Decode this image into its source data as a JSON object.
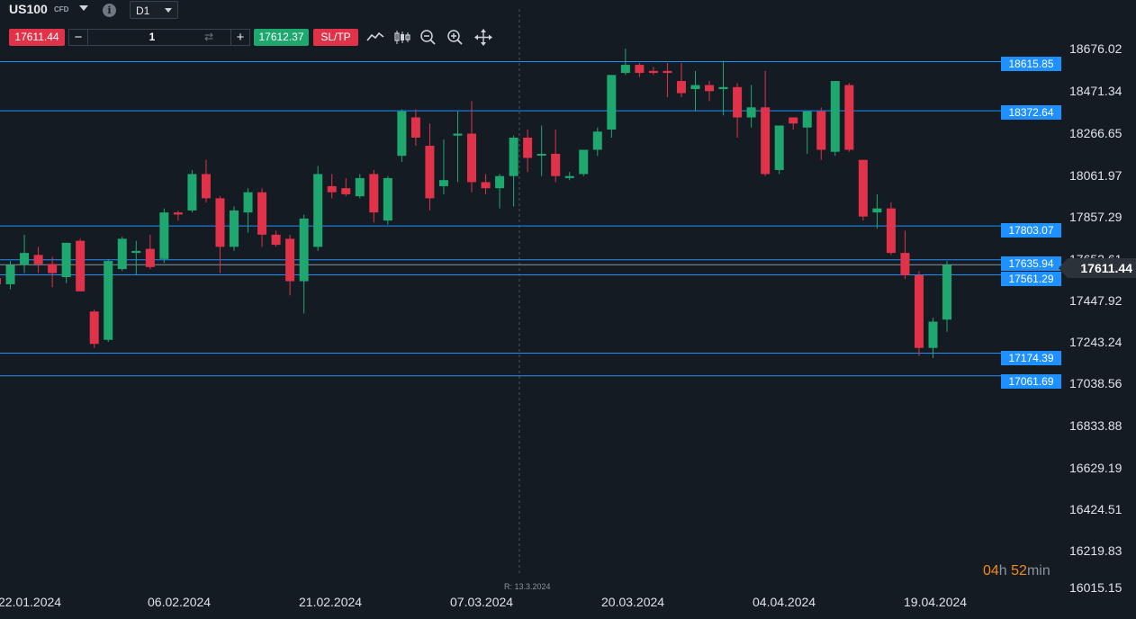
{
  "header": {
    "symbol": "US100",
    "symbol_type": "CFD",
    "info_icon": "info-icon",
    "timeframe": "D1"
  },
  "trade_bar": {
    "sell_price": "17611.44",
    "quantity": "1",
    "buy_price": "17612.37",
    "sltp_label": "SL/TP",
    "tools": [
      "line-chart-icon",
      "candlestick-icon",
      "zoom-out-icon",
      "zoom-in-icon",
      "move-icon"
    ]
  },
  "price_axis": [
    "18676.02",
    "18471.34",
    "18266.65",
    "18061.97",
    "17857.29",
    "17652.61",
    "17447.92",
    "17243.24",
    "17038.56",
    "16833.88",
    "16629.19",
    "16424.51",
    "16219.83",
    "16015.15"
  ],
  "date_axis": [
    "22.01.2024",
    "06.02.2024",
    "21.02.2024",
    "07.03.2024",
    "20.03.2024",
    "04.04.2024",
    "19.04.2024"
  ],
  "levels": [
    "18615.85",
    "18372.64",
    "17803.07",
    "17635.94",
    "17561.29",
    "17174.39",
    "17061.69"
  ],
  "current_price": "17611.44",
  "marker_label": "R: 13.3.2024",
  "countdown": {
    "hours": "04",
    "h": "h",
    "minutes": "52",
    "min": "min"
  },
  "colors": {
    "up": "#1ea870",
    "down": "#e0334a",
    "level": "#1e90ff",
    "background": "#151b22"
  },
  "chart_data": {
    "type": "candlestick",
    "series": [
      {
        "name": "US100",
        "ohlc": [
          [
            17545,
            17565,
            17480,
            17515
          ],
          [
            17515,
            17630,
            17490,
            17610
          ],
          [
            17610,
            17760,
            17570,
            17670
          ],
          [
            17660,
            17700,
            17570,
            17615
          ],
          [
            17615,
            17650,
            17500,
            17570
          ],
          [
            17550,
            17720,
            17520,
            17720
          ],
          [
            17730,
            17740,
            17480,
            17480
          ],
          [
            17380,
            17390,
            17200,
            17220
          ],
          [
            17240,
            17640,
            17230,
            17630
          ],
          [
            17590,
            17750,
            17580,
            17740
          ],
          [
            17670,
            17730,
            17560,
            17680
          ],
          [
            17690,
            17760,
            17590,
            17600
          ],
          [
            17640,
            17890,
            17620,
            17870
          ],
          [
            17870,
            17880,
            17830,
            17860
          ],
          [
            17880,
            18080,
            17870,
            18060
          ],
          [
            18060,
            18130,
            17920,
            17940
          ],
          [
            17940,
            17950,
            17570,
            17700
          ],
          [
            17700,
            17900,
            17680,
            17880
          ],
          [
            17870,
            17990,
            17770,
            17970
          ],
          [
            17970,
            17990,
            17700,
            17760
          ],
          [
            17760,
            17780,
            17700,
            17710
          ],
          [
            17740,
            17760,
            17460,
            17530
          ],
          [
            17530,
            17860,
            17370,
            17840
          ],
          [
            17700,
            18100,
            17680,
            18060
          ],
          [
            18000,
            18060,
            17940,
            17970
          ],
          [
            17990,
            18040,
            17950,
            17960
          ],
          [
            17950,
            18060,
            17940,
            18040
          ],
          [
            18060,
            18080,
            17820,
            17870
          ],
          [
            17830,
            18050,
            17810,
            18040
          ],
          [
            18150,
            18380,
            18120,
            18370
          ],
          [
            18340,
            18380,
            18200,
            18240
          ],
          [
            18200,
            18310,
            17880,
            17940
          ],
          [
            18000,
            18230,
            17960,
            18030
          ],
          [
            18250,
            18370,
            18020,
            18260
          ],
          [
            18260,
            18420,
            17970,
            18020
          ],
          [
            18020,
            18060,
            17960,
            17990
          ],
          [
            17990,
            18060,
            17890,
            18050
          ],
          [
            18050,
            18250,
            17900,
            18240
          ],
          [
            18240,
            18280,
            18070,
            18140
          ],
          [
            18160,
            18300,
            18050,
            18160
          ],
          [
            18160,
            18280,
            18020,
            18050
          ],
          [
            18040,
            18070,
            18030,
            18050
          ],
          [
            18060,
            18180,
            18050,
            18180
          ],
          [
            18180,
            18290,
            18150,
            18270
          ],
          [
            18280,
            18550,
            18240,
            18550
          ],
          [
            18560,
            18680,
            18550,
            18600
          ],
          [
            18600,
            18610,
            18540,
            18560
          ],
          [
            18570,
            18590,
            18550,
            18560
          ],
          [
            18570,
            18610,
            18440,
            18560
          ],
          [
            18520,
            18610,
            18440,
            18460
          ],
          [
            18480,
            18570,
            18370,
            18500
          ],
          [
            18500,
            18520,
            18420,
            18470
          ],
          [
            18480,
            18620,
            18350,
            18490
          ],
          [
            18490,
            18510,
            18240,
            18340
          ],
          [
            18340,
            18500,
            18290,
            18390
          ],
          [
            18390,
            18570,
            18050,
            18060
          ],
          [
            18080,
            18280,
            18060,
            18300
          ],
          [
            18340,
            18340,
            18280,
            18310
          ],
          [
            18290,
            18360,
            18160,
            18370
          ],
          [
            18370,
            18390,
            18130,
            18180
          ],
          [
            18170,
            18510,
            18150,
            18520
          ],
          [
            18500,
            18510,
            18170,
            18180
          ],
          [
            18130,
            18130,
            17830,
            17850
          ],
          [
            17870,
            17960,
            17790,
            17890
          ],
          [
            17890,
            17920,
            17660,
            17670
          ],
          [
            17670,
            17780,
            17540,
            17560
          ],
          [
            17560,
            17580,
            17160,
            17200
          ],
          [
            17200,
            17350,
            17150,
            17330
          ],
          [
            17340,
            17630,
            17280,
            17610
          ]
        ]
      }
    ],
    "ylim": [
      16015.15,
      18676.02
    ]
  }
}
